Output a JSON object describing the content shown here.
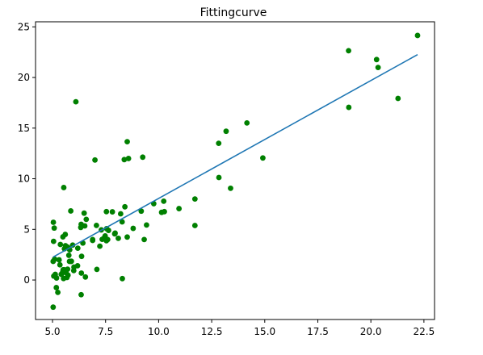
{
  "chart_data": {
    "type": "scatter",
    "title": "Fittingcurve",
    "xlabel": "",
    "ylabel": "",
    "xlim": [
      4.2,
      23.0
    ],
    "ylim": [
      -3.9,
      25.5
    ],
    "xticks": [
      5.0,
      7.5,
      10.0,
      12.5,
      15.0,
      17.5,
      20.0,
      22.5
    ],
    "xtick_labels": [
      "5.0",
      "7.5",
      "10.0",
      "12.5",
      "15.0",
      "17.5",
      "20.0",
      "22.5"
    ],
    "yticks": [
      0,
      5,
      10,
      15,
      20,
      25
    ],
    "ytick_labels": [
      "0",
      "5",
      "10",
      "15",
      "20",
      "25"
    ],
    "grid": false,
    "legend": null,
    "colors": {
      "points": "#008000",
      "line": "#1f77b4"
    },
    "series": [
      {
        "type": "scatter",
        "points": [
          [
            6.1,
            17.6
          ],
          [
            5.53,
            9.13
          ],
          [
            8.52,
            13.66
          ],
          [
            7.0,
            11.85
          ],
          [
            5.86,
            6.82
          ],
          [
            8.38,
            11.89
          ],
          [
            7.48,
            4.35
          ],
          [
            8.58,
            12.0
          ],
          [
            6.49,
            6.6
          ],
          [
            5.05,
            3.82
          ],
          [
            5.71,
            3.25
          ],
          [
            14.16,
            15.51
          ],
          [
            5.73,
            3.16
          ],
          [
            8.41,
            7.23
          ],
          [
            5.64,
            0.72
          ],
          [
            5.37,
            3.51
          ],
          [
            6.37,
            5.3
          ],
          [
            5.13,
            0.56
          ],
          [
            6.43,
            3.65
          ],
          [
            7.07,
            5.39
          ],
          [
            6.19,
            3.14
          ],
          [
            20.27,
            21.77
          ],
          [
            5.49,
            4.26
          ],
          [
            6.33,
            5.19
          ],
          [
            5.56,
            3.08
          ],
          [
            18.95,
            22.64
          ],
          [
            12.83,
            13.5
          ],
          [
            10.96,
            7.05
          ],
          [
            13.18,
            14.69
          ],
          [
            22.2,
            24.15
          ],
          [
            5.25,
            -1.22
          ],
          [
            6.59,
            5.99
          ],
          [
            9.25,
            12.13
          ],
          [
            5.89,
            1.85
          ],
          [
            8.21,
            6.54
          ],
          [
            7.93,
            4.56
          ],
          [
            8.1,
            4.12
          ],
          [
            5.61,
            3.39
          ],
          [
            12.84,
            10.12
          ],
          [
            6.35,
            5.5
          ],
          [
            5.41,
            0.56
          ],
          [
            6.89,
            3.91
          ],
          [
            11.71,
            5.38
          ],
          [
            5.77,
            2.44
          ],
          [
            7.82,
            6.73
          ],
          [
            7.09,
            1.05
          ],
          [
            5.08,
            5.13
          ],
          [
            5.8,
            1.84
          ],
          [
            11.71,
            8.0
          ],
          [
            5.54,
            1.02
          ],
          [
            7.54,
            6.75
          ],
          [
            5.03,
            1.84
          ],
          [
            10.24,
            7.78
          ],
          [
            5.5,
            1.01
          ],
          [
            20.34,
            20.99
          ],
          [
            10.14,
            6.68
          ],
          [
            7.34,
            4.02
          ],
          [
            6.01,
            1.28
          ],
          [
            7.23,
            3.34
          ],
          [
            5.03,
            -2.68
          ],
          [
            6.55,
            0.3
          ],
          [
            7.54,
            3.88
          ],
          [
            5.04,
            5.7
          ],
          [
            10.27,
            6.75
          ],
          [
            5.1,
            2.06
          ],
          [
            5.73,
            0.48
          ],
          [
            5.19,
            0.2
          ],
          [
            6.36,
            0.68
          ],
          [
            9.77,
            7.54
          ],
          [
            6.52,
            5.34
          ],
          [
            8.52,
            4.24
          ],
          [
            9.18,
            6.8
          ],
          [
            6.0,
            0.93
          ],
          [
            5.52,
            0.15
          ],
          [
            5.06,
            0.39
          ],
          [
            5.71,
            1.07
          ],
          [
            7.64,
            4.9
          ],
          [
            5.87,
            1.84
          ],
          [
            5.31,
            1.99
          ],
          [
            8.29,
            0.14
          ],
          [
            13.39,
            9.06
          ],
          [
            5.44,
            0.62
          ],
          [
            5.81,
            2.98
          ],
          [
            6.37,
            2.34
          ],
          [
            6.18,
            1.41
          ],
          [
            8.28,
            5.74
          ],
          [
            7.95,
            4.63
          ],
          [
            6.89,
            4.0
          ],
          [
            7.55,
            5.07
          ],
          [
            9.43,
            5.43
          ],
          [
            7.6,
            4.0
          ],
          [
            8.8,
            5.1
          ],
          [
            7.45,
            4.2
          ],
          [
            6.35,
            -1.45
          ],
          [
            5.18,
            -0.75
          ],
          [
            5.6,
            4.5
          ],
          [
            5.68,
            0.25
          ],
          [
            5.48,
            0.8
          ],
          [
            9.32,
            4.0
          ],
          [
            14.91,
            12.05
          ],
          [
            18.96,
            17.05
          ],
          [
            21.28,
            17.93
          ],
          [
            7.3,
            4.95
          ],
          [
            5.95,
            3.45
          ],
          [
            5.35,
            1.5
          ]
        ]
      },
      {
        "type": "line",
        "x": [
          5.03,
          22.2
        ],
        "y": [
          2.27,
          22.26
        ]
      }
    ]
  }
}
